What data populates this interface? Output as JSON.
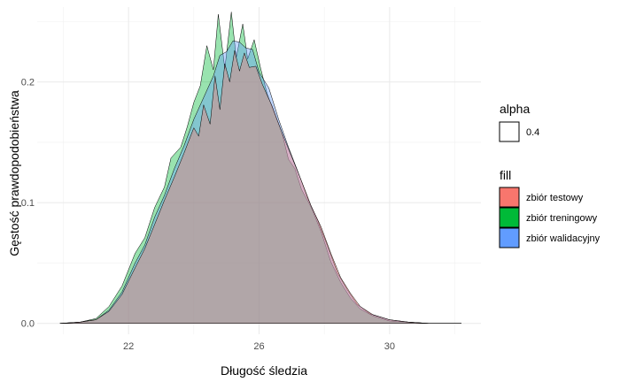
{
  "chart_data": {
    "type": "area",
    "title": "",
    "xlabel": "Długość śledzia",
    "ylabel": "Gęstość prawdopodobieństwa",
    "xlim": [
      19.2,
      32.8
    ],
    "ylim": [
      -0.009,
      0.262
    ],
    "x_ticks": [
      22,
      26,
      30
    ],
    "y_ticks": [
      0.0,
      0.1,
      0.2
    ],
    "y_tick_labels": [
      "0.0",
      "0.1",
      "0.2"
    ],
    "grid": true,
    "legend_position": "right",
    "legend_alpha": {
      "title": "alpha",
      "label": "0.4"
    },
    "legend_fill": {
      "title": "fill",
      "entries": [
        {
          "label": "zbiór testowy",
          "color": "#F8766D"
        },
        {
          "label": "zbiór treningowy",
          "color": "#00BA38"
        },
        {
          "label": "zbiór walidacyjny",
          "color": "#619CFF"
        }
      ]
    },
    "series": [
      {
        "name": "zbiór treningowy",
        "color": "#00BA38",
        "x": [
          19.9,
          20.5,
          21.0,
          21.4,
          21.8,
          22.2,
          22.5,
          22.8,
          23.1,
          23.3,
          23.6,
          23.8,
          24.0,
          24.2,
          24.4,
          24.6,
          24.75,
          24.95,
          25.15,
          25.3,
          25.5,
          25.65,
          25.85,
          26.05,
          26.25,
          26.5,
          26.7,
          26.9,
          27.1,
          27.3,
          27.6,
          27.9,
          28.2,
          28.5,
          28.8,
          29.1,
          29.5,
          30.0,
          30.6,
          31.2,
          31.8,
          32.2
        ],
        "y": [
          0.0,
          0.001,
          0.004,
          0.014,
          0.031,
          0.058,
          0.071,
          0.096,
          0.113,
          0.137,
          0.146,
          0.163,
          0.183,
          0.197,
          0.23,
          0.21,
          0.256,
          0.211,
          0.258,
          0.22,
          0.248,
          0.219,
          0.235,
          0.211,
          0.19,
          0.172,
          0.158,
          0.136,
          0.128,
          0.111,
          0.096,
          0.076,
          0.051,
          0.034,
          0.021,
          0.012,
          0.006,
          0.002,
          0.001,
          0.0,
          0.0,
          0.0
        ]
      },
      {
        "name": "zbiór walidacyjny",
        "color": "#619CFF",
        "x": [
          19.9,
          20.5,
          21.0,
          21.4,
          21.8,
          22.2,
          22.5,
          22.8,
          23.1,
          23.4,
          23.7,
          24.0,
          24.3,
          24.6,
          24.8,
          25.0,
          25.2,
          25.4,
          25.6,
          25.8,
          26.0,
          26.3,
          26.6,
          26.9,
          27.2,
          27.5,
          27.8,
          28.1,
          28.4,
          28.7,
          29.0,
          29.4,
          30.0,
          30.6,
          31.2,
          31.8,
          32.2
        ],
        "y": [
          0.0,
          0.001,
          0.003,
          0.011,
          0.026,
          0.05,
          0.065,
          0.088,
          0.106,
          0.128,
          0.147,
          0.169,
          0.187,
          0.205,
          0.222,
          0.225,
          0.234,
          0.233,
          0.228,
          0.227,
          0.208,
          0.195,
          0.169,
          0.146,
          0.125,
          0.103,
          0.085,
          0.064,
          0.042,
          0.028,
          0.016,
          0.008,
          0.003,
          0.001,
          0.0,
          0.0,
          0.0
        ]
      },
      {
        "name": "zbiór testowy",
        "color": "#F8766D",
        "x": [
          19.9,
          20.5,
          21.0,
          21.4,
          21.8,
          22.2,
          22.5,
          22.8,
          23.1,
          23.4,
          23.7,
          24.0,
          24.15,
          24.3,
          24.5,
          24.65,
          24.8,
          24.95,
          25.1,
          25.25,
          25.4,
          25.55,
          25.7,
          25.9,
          26.1,
          26.4,
          26.7,
          27.0,
          27.3,
          27.6,
          27.9,
          28.2,
          28.5,
          28.8,
          29.1,
          29.5,
          30.0,
          30.6,
          31.2,
          31.8,
          32.2
        ],
        "y": [
          0.0,
          0.001,
          0.003,
          0.01,
          0.024,
          0.046,
          0.062,
          0.082,
          0.102,
          0.121,
          0.141,
          0.162,
          0.155,
          0.181,
          0.165,
          0.205,
          0.177,
          0.215,
          0.2,
          0.226,
          0.209,
          0.224,
          0.212,
          0.213,
          0.198,
          0.18,
          0.158,
          0.138,
          0.118,
          0.097,
          0.08,
          0.058,
          0.038,
          0.025,
          0.014,
          0.007,
          0.003,
          0.001,
          0.0,
          0.0,
          0.0
        ]
      }
    ]
  }
}
